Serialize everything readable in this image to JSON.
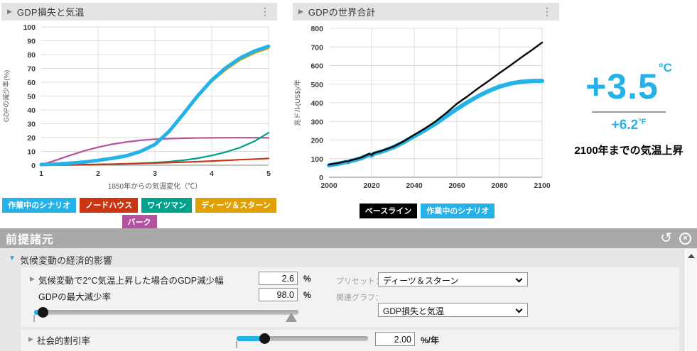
{
  "colors": {
    "accent_cyan": "#25b2e8",
    "nordhaus_red": "#cc3511",
    "weitzman_teal": "#00a18a",
    "dietz_stern_amber": "#e0a000",
    "burke_magenta": "#b5519e",
    "baseline_black": "#0a0a0a"
  },
  "charts": {
    "gdp_loss": {
      "type": "line",
      "title": "GDP損失と気温",
      "menu_icon": "⋮",
      "collapse_icon": "▶",
      "xlabel": "1850年からの気温変化（℃）",
      "ylabel": "GDPの減少率(%)",
      "xlim": [
        1,
        5
      ],
      "ylim": [
        0,
        100
      ],
      "xticks": [
        1,
        2,
        3,
        4,
        5
      ],
      "yticks": [
        0,
        10,
        20,
        30,
        40,
        50,
        60,
        70,
        80,
        90,
        100
      ],
      "x": [
        1,
        1.25,
        1.5,
        1.75,
        2,
        2.25,
        2.5,
        2.75,
        3,
        3.25,
        3.5,
        3.75,
        4,
        4.25,
        4.5,
        4.75,
        5
      ],
      "series": [
        {
          "name": "バーク",
          "color": "#b5519e",
          "width": 2.2,
          "y": [
            0.3,
            3.5,
            7,
            10.3,
            13,
            15.2,
            16.8,
            18,
            18.8,
            19.2,
            19.5,
            19.7,
            19.8,
            19.9,
            19.9,
            19.9,
            19.8
          ]
        },
        {
          "name": "ワイツマン",
          "color": "#00a18a",
          "width": 2.2,
          "y": [
            0,
            0.1,
            0.2,
            0.3,
            0.5,
            0.7,
            1,
            1.4,
            1.9,
            2.6,
            3.6,
            5,
            7,
            9.5,
            12.8,
            17.3,
            23.5
          ]
        },
        {
          "name": "ノードハウス",
          "color": "#cc3511",
          "width": 2.2,
          "y": [
            0.1,
            0.2,
            0.3,
            0.45,
            0.6,
            0.8,
            1.05,
            1.3,
            1.6,
            1.9,
            2.2,
            2.6,
            3,
            3.5,
            4,
            4.4,
            4.9
          ]
        },
        {
          "name": "ディーツ＆スターン",
          "color": "#e0a000",
          "width": 2.4,
          "y": [
            0.5,
            0.9,
            1.5,
            2.5,
            3.8,
            5.3,
            7.2,
            10.5,
            15.5,
            25,
            37,
            49.5,
            60.5,
            69,
            76,
            81,
            84.5
          ]
        },
        {
          "name": "作業中のシナリオ",
          "color": "#25b2e8",
          "width": 5,
          "y": [
            0.5,
            0.8,
            1.4,
            2.3,
            3.5,
            5,
            6.8,
            10,
            15,
            24.5,
            37,
            50,
            61.5,
            70.5,
            77.5,
            82.5,
            86
          ]
        }
      ],
      "legend": [
        [
          {
            "label": "作業中のシナリオ",
            "color": "#25b2e8"
          },
          {
            "label": "ノードハウス",
            "color": "#cc3511"
          },
          {
            "label": "ワイツマン",
            "color": "#00a18a"
          },
          {
            "label": "ディーツ＆スターン",
            "color": "#e0a000"
          }
        ],
        [
          {
            "label": "バーク",
            "color": "#b5519e"
          }
        ]
      ]
    },
    "gdp_total": {
      "type": "line",
      "title": "GDPの世界合計",
      "menu_icon": "⋮",
      "collapse_icon": "▶",
      "xlabel": "",
      "ylabel": "兆ドル(US$)/年",
      "xlim": [
        2000,
        2100
      ],
      "ylim": [
        0,
        800
      ],
      "xticks": [
        2000,
        2020,
        2040,
        2060,
        2080,
        2100
      ],
      "yticks": [
        0,
        100,
        200,
        300,
        400,
        500,
        600,
        700,
        800
      ],
      "x": [
        2000,
        2005,
        2008,
        2009,
        2010,
        2012,
        2015,
        2019,
        2020,
        2021,
        2025,
        2030,
        2035,
        2040,
        2045,
        2050,
        2055,
        2060,
        2065,
        2070,
        2075,
        2080,
        2085,
        2090,
        2095,
        2100
      ],
      "series": [
        {
          "name": "作業中のシナリオ",
          "color": "#25b2e8",
          "width": 6,
          "y": [
            64,
            74,
            82,
            81,
            87,
            92,
            102,
            122,
            116,
            126,
            139,
            160,
            188,
            221,
            253,
            288,
            328,
            367,
            403,
            436,
            464,
            487,
            503,
            513,
            517,
            518
          ]
        },
        {
          "name": "ベースライン",
          "color": "#0a0a0a",
          "width": 2.5,
          "y": [
            68,
            78,
            86,
            85,
            91,
            96,
            106,
            126,
            120,
            130,
            143,
            164,
            193,
            228,
            262,
            300,
            345,
            395,
            435,
            478,
            518,
            560,
            600,
            642,
            682,
            724
          ]
        }
      ],
      "legend": [
        [
          {
            "label": "ベースライン",
            "color": "#000000"
          },
          {
            "label": "作業中のシナリオ",
            "color": "#25b2e8"
          }
        ]
      ]
    }
  },
  "temperature": {
    "celsius": "+3.5",
    "celsius_unit": "°C",
    "fahrenheit": "+6.2",
    "fahrenheit_unit": "°F",
    "caption": "2100年までの気温上昇"
  },
  "panel": {
    "title": "前提諸元",
    "reset_icon": "↺",
    "close_icon": "×",
    "section": {
      "collapse_icon": "▼",
      "label": "気候変動の経済的影響"
    },
    "rows": [
      {
        "arrow": "▶",
        "label": "気候変動で2°C気温上昇した場合のGDP減少幅",
        "value": "2.6",
        "unit": "%"
      },
      {
        "arrow": "",
        "label": "GDPの最大減少率",
        "value": "98.0",
        "unit": "%"
      }
    ],
    "preset": {
      "label": "プリセット：",
      "value": "ディーツ＆スターン"
    },
    "graph": {
      "label": "関連グラフ：",
      "value": "GDP損失と気温"
    },
    "discount": {
      "arrow": "▶",
      "label": "社会的割引率",
      "value": "2.00",
      "unit": "%/年"
    }
  }
}
